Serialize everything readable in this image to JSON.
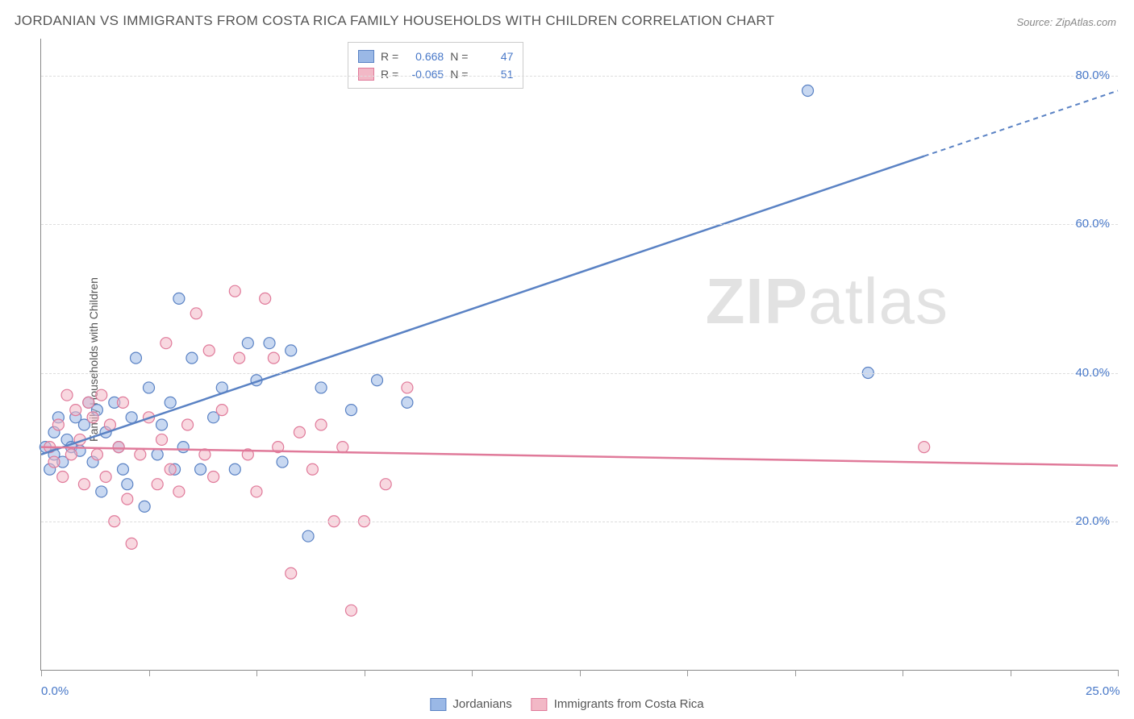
{
  "title": "JORDANIAN VS IMMIGRANTS FROM COSTA RICA FAMILY HOUSEHOLDS WITH CHILDREN CORRELATION CHART",
  "source": "Source: ZipAtlas.com",
  "ylabel": "Family Households with Children",
  "watermark_bold": "ZIP",
  "watermark_light": "atlas",
  "chart": {
    "type": "scatter",
    "xlim": [
      0,
      25
    ],
    "ylim": [
      0,
      85
    ],
    "xticks": [
      0,
      2.5,
      5,
      7.5,
      10,
      12.5,
      15,
      17.5,
      20,
      22.5,
      25
    ],
    "xtick_labels": {
      "0": "0.0%",
      "25": "25.0%"
    },
    "yticks": [
      20,
      40,
      60,
      80
    ],
    "ytick_labels": {
      "20": "20.0%",
      "40": "40.0%",
      "60": "60.0%",
      "80": "80.0%"
    },
    "background_color": "#ffffff",
    "grid_color": "#dddddd",
    "axis_color": "#888888",
    "marker_radius": 7,
    "marker_opacity": 0.55,
    "series": [
      {
        "name": "Jordanians",
        "color_fill": "#9ab8e6",
        "color_stroke": "#5a82c4",
        "R": "0.668",
        "N": "47",
        "trend": {
          "x1": 0,
          "y1": 29,
          "x2": 25,
          "y2": 78,
          "dash_from_x": 20.5
        },
        "points": [
          [
            0.1,
            30
          ],
          [
            0.2,
            27
          ],
          [
            0.3,
            32
          ],
          [
            0.3,
            29
          ],
          [
            0.4,
            34
          ],
          [
            0.5,
            28
          ],
          [
            0.6,
            31
          ],
          [
            0.7,
            30
          ],
          [
            0.8,
            34
          ],
          [
            0.9,
            29.5
          ],
          [
            1.0,
            33
          ],
          [
            1.1,
            36
          ],
          [
            1.2,
            28
          ],
          [
            1.3,
            35
          ],
          [
            1.4,
            24
          ],
          [
            1.5,
            32
          ],
          [
            1.7,
            36
          ],
          [
            1.8,
            30
          ],
          [
            1.9,
            27
          ],
          [
            2.0,
            25
          ],
          [
            2.1,
            34
          ],
          [
            2.2,
            42
          ],
          [
            2.4,
            22
          ],
          [
            2.5,
            38
          ],
          [
            2.7,
            29
          ],
          [
            2.8,
            33
          ],
          [
            3.0,
            36
          ],
          [
            3.1,
            27
          ],
          [
            3.2,
            50
          ],
          [
            3.3,
            30
          ],
          [
            3.5,
            42
          ],
          [
            3.7,
            27
          ],
          [
            4.0,
            34
          ],
          [
            4.2,
            38
          ],
          [
            4.5,
            27
          ],
          [
            4.8,
            44
          ],
          [
            5.0,
            39
          ],
          [
            5.3,
            44
          ],
          [
            5.6,
            28
          ],
          [
            5.8,
            43
          ],
          [
            6.2,
            18
          ],
          [
            6.5,
            38
          ],
          [
            7.2,
            35
          ],
          [
            7.8,
            39
          ],
          [
            8.5,
            36
          ],
          [
            17.8,
            78
          ],
          [
            19.2,
            40
          ]
        ]
      },
      {
        "name": "Immigrants from Costa Rica",
        "color_fill": "#f2b8c6",
        "color_stroke": "#e07a9a",
        "R": "-0.065",
        "N": "51",
        "trend": {
          "x1": 0,
          "y1": 30,
          "x2": 25,
          "y2": 27.5,
          "dash_from_x": null
        },
        "points": [
          [
            0.2,
            30
          ],
          [
            0.3,
            28
          ],
          [
            0.4,
            33
          ],
          [
            0.5,
            26
          ],
          [
            0.6,
            37
          ],
          [
            0.7,
            29
          ],
          [
            0.8,
            35
          ],
          [
            0.9,
            31
          ],
          [
            1.0,
            25
          ],
          [
            1.1,
            36
          ],
          [
            1.2,
            34
          ],
          [
            1.3,
            29
          ],
          [
            1.4,
            37
          ],
          [
            1.5,
            26
          ],
          [
            1.6,
            33
          ],
          [
            1.7,
            20
          ],
          [
            1.8,
            30
          ],
          [
            1.9,
            36
          ],
          [
            2.0,
            23
          ],
          [
            2.1,
            17
          ],
          [
            2.3,
            29
          ],
          [
            2.5,
            34
          ],
          [
            2.7,
            25
          ],
          [
            2.8,
            31
          ],
          [
            3.0,
            27
          ],
          [
            3.2,
            24
          ],
          [
            3.4,
            33
          ],
          [
            3.6,
            48
          ],
          [
            3.8,
            29
          ],
          [
            4.0,
            26
          ],
          [
            4.2,
            35
          ],
          [
            4.5,
            51
          ],
          [
            4.8,
            29
          ],
          [
            5.0,
            24
          ],
          [
            5.2,
            50
          ],
          [
            5.5,
            30
          ],
          [
            5.8,
            13
          ],
          [
            6.0,
            32
          ],
          [
            6.3,
            27
          ],
          [
            6.5,
            33
          ],
          [
            6.8,
            20
          ],
          [
            7.0,
            30
          ],
          [
            7.2,
            8
          ],
          [
            7.5,
            20
          ],
          [
            8.0,
            25
          ],
          [
            8.5,
            38
          ],
          [
            20.5,
            30
          ],
          [
            4.6,
            42
          ],
          [
            3.9,
            43
          ],
          [
            2.9,
            44
          ],
          [
            5.4,
            42
          ]
        ]
      }
    ]
  },
  "legend_labels": {
    "R_prefix": "R =",
    "N_prefix": "N ="
  }
}
